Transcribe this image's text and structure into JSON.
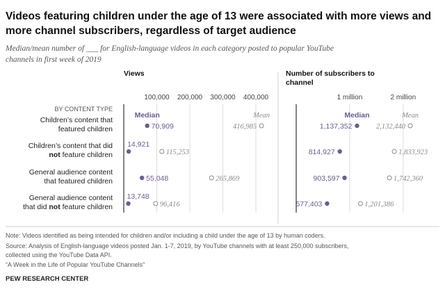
{
  "title": "Videos featuring children under the age of 13 were associated with more views and more channel subscribers, regardless of target audience",
  "subtitle": "Median/mean number of ___ for English-language videos in each category posted to popular YouTube channels in first week of 2019",
  "row_header": "BY CONTENT TYPE",
  "footer": {
    "note": "Note: Videos identified as being intended for children and/or including a child under the age of 13 by human coders.",
    "source": "Source: Analysis of English-language videos posted Jan. 1-7, 2019, by YouTube channels with at least 250,000 subscribers, collected using the YouTube Data API.",
    "report": "“A Week in the Life of Popular YouTube Channels”",
    "org": "PEW RESEARCH CENTER"
  },
  "colors": {
    "median": "#6b5b95",
    "mean": "#8a8a8a",
    "grid": "#dddddd",
    "axis": "#333333"
  },
  "chart_data": [
    {
      "type": "scatter",
      "title": "Views",
      "xlim": [
        0,
        400000
      ],
      "xticks": [
        100000,
        200000,
        300000,
        400000
      ],
      "xtick_labels": [
        "100,000",
        "200,000",
        "300,000",
        "400,000"
      ],
      "legend": {
        "median": "Median",
        "mean": "Mean"
      },
      "categories": [
        [
          "Children’s content that",
          "featured children"
        ],
        [
          "Children’s content that did",
          "not feature children"
        ],
        [
          "General audience content",
          "that featured children"
        ],
        [
          "General audience content",
          "that did not feature children"
        ]
      ],
      "series": [
        {
          "name": "Median",
          "values": [
            70909,
            14921,
            55048,
            13748
          ],
          "labels": [
            "70,909",
            "14,921",
            "55,048",
            "13,748"
          ]
        },
        {
          "name": "Mean",
          "values": [
            416985,
            115253,
            265869,
            96416
          ],
          "labels": [
            "416,985",
            "115,253",
            "265,869",
            "96,416"
          ]
        }
      ]
    },
    {
      "type": "scatter",
      "title": "Number of subscribers to channel",
      "xlim": [
        0,
        2600000
      ],
      "xticks": [
        1000000,
        2000000
      ],
      "xtick_labels": [
        "1 million",
        "2 million"
      ],
      "legend": {
        "median": "Median",
        "mean": "Mean"
      },
      "series": [
        {
          "name": "Median",
          "values": [
            1137352,
            814927,
            903597,
            577403
          ],
          "labels": [
            "1,137,352",
            "814,927",
            "903,597",
            "577,403"
          ]
        },
        {
          "name": "Mean",
          "values": [
            2132440,
            1833923,
            1742360,
            1201386
          ],
          "labels": [
            "2,132,440",
            "1,833,923",
            "1,742,360",
            "1,201,386"
          ]
        }
      ]
    }
  ]
}
